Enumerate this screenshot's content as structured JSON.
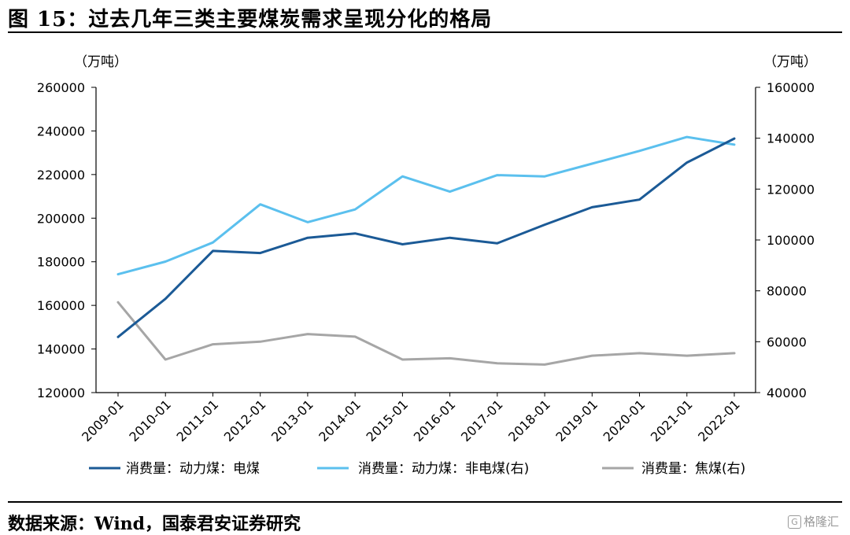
{
  "header": {
    "title": "图 15：过去几年三类主要煤炭需求呈现分化的格局"
  },
  "footer": {
    "source": "数据来源：Wind，国泰君安证券研究",
    "watermark_icon": "G",
    "watermark_text": "格隆汇"
  },
  "chart_data": {
    "type": "line",
    "title": "图 15：过去几年三类主要煤炭需求呈现分化的格局",
    "ylabel_left": "（万吨）",
    "ylabel_right": "（万吨）",
    "x": [
      "2009-01",
      "2010-01",
      "2011-01",
      "2012-01",
      "2013-01",
      "2014-01",
      "2015-01",
      "2016-01",
      "2017-01",
      "2018-01",
      "2019-01",
      "2020-01",
      "2021-01",
      "2022-01"
    ],
    "ylim_left": [
      120000,
      260000
    ],
    "yticks_left": [
      120000,
      140000,
      160000,
      180000,
      200000,
      220000,
      240000,
      260000
    ],
    "ylim_right": [
      40000,
      160000
    ],
    "yticks_right": [
      40000,
      60000,
      80000,
      100000,
      120000,
      140000,
      160000
    ],
    "grid": false,
    "legend": "bottom",
    "series": [
      {
        "name": "消费量：动力煤：电煤",
        "axis": "left",
        "color": "#1b5a96",
        "values": [
          145500,
          163000,
          185000,
          184000,
          191000,
          193000,
          188000,
          191000,
          188500,
          197000,
          205000,
          208500,
          225500,
          236500
        ]
      },
      {
        "name": "消费量：动力煤：非电煤(右)",
        "axis": "right",
        "color": "#5bc0ee",
        "values": [
          86500,
          91500,
          99000,
          114000,
          107000,
          112000,
          125000,
          119000,
          125500,
          125000,
          130000,
          135000,
          140500,
          137500
        ]
      },
      {
        "name": "消费量：焦煤(右)",
        "axis": "right",
        "color": "#a6a6a6",
        "values": [
          75500,
          53000,
          59000,
          60000,
          63000,
          62000,
          53000,
          53500,
          51500,
          51000,
          54500,
          55500,
          54500,
          55500
        ]
      }
    ]
  }
}
